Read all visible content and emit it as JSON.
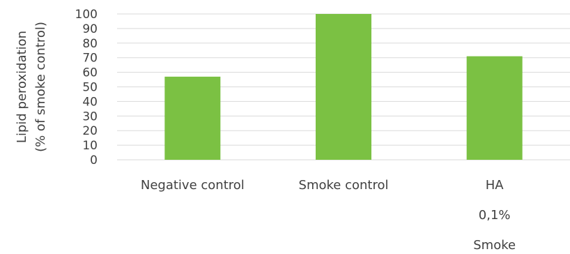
{
  "chart_data": {
    "type": "bar",
    "categories": [
      [
        "Negative control"
      ],
      [
        "Smoke control"
      ],
      [
        "HA",
        "0,1%",
        "Smoke"
      ]
    ],
    "values": [
      57,
      100,
      71
    ],
    "ylabel_lines": [
      "Lipid peroxidation",
      "(% of smoke control)"
    ],
    "ylim": [
      0,
      100
    ],
    "yticks": [
      0,
      10,
      20,
      30,
      40,
      50,
      60,
      70,
      80,
      90,
      100
    ],
    "grid": true,
    "legend": "none",
    "bar_color": "#7bc143",
    "grid_color": "#d9d9d9",
    "text_color": "#404040"
  }
}
